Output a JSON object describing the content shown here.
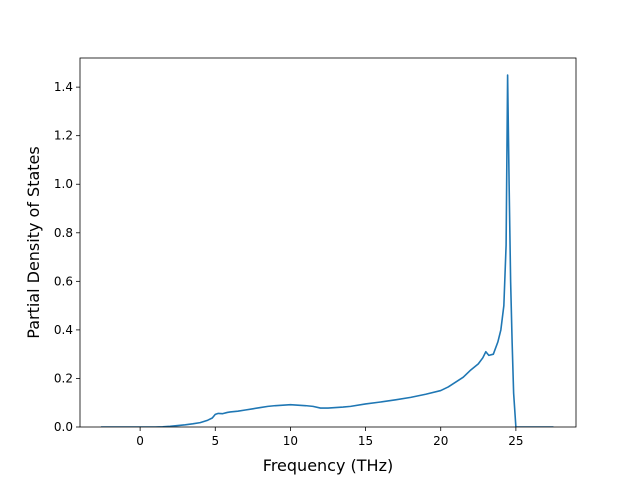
{
  "chart_data": {
    "type": "line",
    "title": "",
    "xlabel": "Frequency (THz)",
    "ylabel": "Partial Density of States",
    "xlim": [
      -4.0,
      29.0
    ],
    "ylim": [
      0.0,
      1.52
    ],
    "xticks": [
      0,
      5,
      10,
      15,
      20,
      25
    ],
    "yticks": [
      0.0,
      0.2,
      0.4,
      0.6,
      0.8,
      1.0,
      1.2,
      1.4
    ],
    "xtick_labels": [
      "0",
      "5",
      "10",
      "15",
      "20",
      "25"
    ],
    "ytick_labels": [
      "0.0",
      "0.2",
      "0.4",
      "0.6",
      "0.8",
      "1.0",
      "1.2",
      "1.4"
    ],
    "grid": false,
    "legend": "none",
    "line_color": "#1f77b4",
    "series": [
      {
        "x": [
          -2.6,
          -1.0,
          0.0,
          1.0,
          1.5,
          2.0,
          2.5,
          3.0,
          3.5,
          4.0,
          4.5,
          4.8,
          5.0,
          5.2,
          5.5,
          5.8,
          6.0,
          6.5,
          7.0,
          7.5,
          8.0,
          8.5,
          9.0,
          9.5,
          10.0,
          10.5,
          11.0,
          11.5,
          12.0,
          12.5,
          13.0,
          13.5,
          14.0,
          15.0,
          16.0,
          17.0,
          18.0,
          19.0,
          20.0,
          20.5,
          21.0,
          21.5,
          22.0,
          22.5,
          22.8,
          23.0,
          23.2,
          23.5,
          23.8,
          24.0,
          24.2,
          24.35,
          24.45,
          24.55,
          24.65,
          24.75,
          24.85,
          25.0,
          26.0,
          27.5
        ],
        "y": [
          0.0,
          0.0,
          0.0,
          0.0,
          0.001,
          0.003,
          0.006,
          0.009,
          0.013,
          0.018,
          0.028,
          0.037,
          0.052,
          0.056,
          0.055,
          0.06,
          0.062,
          0.065,
          0.07,
          0.075,
          0.08,
          0.085,
          0.088,
          0.09,
          0.092,
          0.09,
          0.088,
          0.085,
          0.078,
          0.078,
          0.08,
          0.082,
          0.085,
          0.095,
          0.103,
          0.112,
          0.122,
          0.135,
          0.15,
          0.165,
          0.185,
          0.205,
          0.235,
          0.26,
          0.285,
          0.31,
          0.295,
          0.3,
          0.35,
          0.4,
          0.5,
          0.75,
          1.45,
          1.0,
          0.6,
          0.35,
          0.14,
          0.0,
          0.0,
          0.0
        ]
      }
    ]
  }
}
